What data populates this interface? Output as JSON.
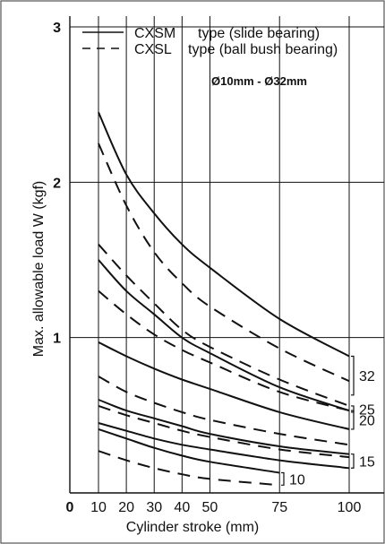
{
  "chart_data": {
    "type": "line",
    "subtitle": "Ø10mm - Ø32mm",
    "xlabel": "Cylinder stroke (mm)",
    "ylabel": "Max. allowable load W (kgf)",
    "xlim": [
      0,
      100
    ],
    "ylim": [
      0,
      3
    ],
    "x_ticks": [
      0,
      10,
      20,
      30,
      40,
      50,
      75,
      100
    ],
    "x_tick_labels": [
      "0",
      "10",
      "20",
      "30",
      "40",
      "50",
      "75",
      "100"
    ],
    "y_ticks": [
      1,
      2,
      3
    ],
    "y_tick_labels": [
      "1",
      "2",
      "3"
    ],
    "legend": {
      "placement": "top",
      "entries": [
        {
          "label_a": "CXSM",
          "label_b": "type (slide bearing)",
          "style": "solid"
        },
        {
          "label_a": "CXSL",
          "label_b": "type (ball bush bearing)",
          "style": "dashed"
        }
      ]
    },
    "group_labels": [
      {
        "text": "32",
        "y_range": [
          0.63,
          0.88
        ]
      },
      {
        "text": "25",
        "y_range": [
          0.52,
          0.56
        ]
      },
      {
        "text": "20",
        "y_range": [
          0.41,
          0.53
        ]
      },
      {
        "text": "15",
        "y_range": [
          0.16,
          0.25
        ]
      },
      {
        "text": "10",
        "y_range": [
          0.05,
          0.13
        ]
      }
    ],
    "series": [
      {
        "group": "32",
        "style": "solid",
        "x": [
          10,
          20,
          30,
          40,
          50,
          75,
          100
        ],
        "y": [
          2.45,
          2.05,
          1.8,
          1.6,
          1.45,
          1.12,
          0.88
        ]
      },
      {
        "group": "32",
        "style": "dashed",
        "x": [
          10,
          20,
          30,
          40,
          50,
          75,
          100
        ],
        "y": [
          2.25,
          1.85,
          1.55,
          1.35,
          1.2,
          0.93,
          0.72
        ]
      },
      {
        "group": "25",
        "style": "solid",
        "x": [
          10,
          20,
          30,
          40,
          50,
          75,
          100
        ],
        "y": [
          1.5,
          1.3,
          1.15,
          1.0,
          0.9,
          0.68,
          0.53
        ]
      },
      {
        "group": "25",
        "style": "dashed",
        "x": [
          10,
          20,
          30,
          40,
          50,
          75,
          100
        ],
        "y": [
          1.6,
          1.4,
          1.22,
          1.05,
          0.94,
          0.73,
          0.56
        ]
      },
      {
        "group": "20",
        "style": "solid",
        "x": [
          10,
          20,
          30,
          40,
          50,
          75,
          100
        ],
        "y": [
          0.97,
          0.88,
          0.8,
          0.73,
          0.67,
          0.52,
          0.41
        ]
      },
      {
        "group": "20",
        "style": "dashed",
        "x": [
          10,
          20,
          30,
          40,
          50,
          75,
          100
        ],
        "y": [
          1.3,
          1.15,
          1.02,
          0.92,
          0.84,
          0.65,
          0.53
        ]
      },
      {
        "group": "15",
        "style": "solid",
        "x": [
          10,
          20,
          30,
          40,
          50,
          75,
          100
        ],
        "y": [
          0.6,
          0.53,
          0.48,
          0.43,
          0.38,
          0.3,
          0.25
        ]
      },
      {
        "group": "15",
        "style": "dashed",
        "x": [
          10,
          20,
          30,
          40,
          50,
          75,
          100
        ],
        "y": [
          0.75,
          0.65,
          0.58,
          0.52,
          0.47,
          0.38,
          0.31
        ]
      },
      {
        "group": "15",
        "style": "solid",
        "x": [
          10,
          20,
          30,
          40,
          50,
          75,
          100
        ],
        "y": [
          0.45,
          0.4,
          0.35,
          0.31,
          0.28,
          0.21,
          0.16
        ]
      },
      {
        "group": "15",
        "style": "dashed",
        "x": [
          10,
          20,
          30,
          40,
          50,
          75,
          100
        ],
        "y": [
          0.56,
          0.5,
          0.45,
          0.4,
          0.36,
          0.28,
          0.23
        ]
      },
      {
        "group": "10",
        "style": "solid",
        "x": [
          10,
          20,
          30,
          40,
          50,
          75
        ],
        "y": [
          0.41,
          0.35,
          0.29,
          0.24,
          0.2,
          0.13
        ]
      },
      {
        "group": "10",
        "style": "dashed",
        "x": [
          10,
          20,
          30,
          40,
          50,
          75
        ],
        "y": [
          0.27,
          0.21,
          0.16,
          0.12,
          0.09,
          0.05
        ]
      }
    ]
  }
}
